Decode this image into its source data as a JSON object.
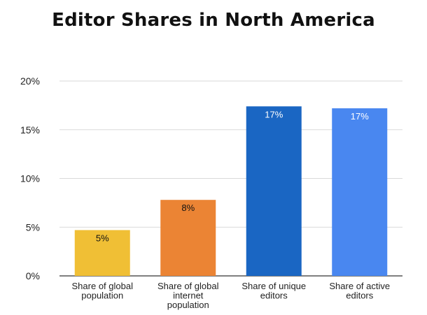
{
  "chart_data": {
    "type": "bar",
    "title": "Editor Shares in North America",
    "xlabel": "",
    "ylabel": "",
    "ylim": [
      0,
      20
    ],
    "yticks": [
      "0%",
      "5%",
      "10%",
      "15%",
      "20%"
    ],
    "ytick_values": [
      0,
      5,
      10,
      15,
      20
    ],
    "grid": true,
    "categories": [
      [
        "Share of global",
        "population"
      ],
      [
        "Share of global",
        "internet",
        "population"
      ],
      [
        "Share of unique",
        "editors"
      ],
      [
        "Share of active",
        "editors"
      ]
    ],
    "values": [
      4.7,
      7.8,
      17.4,
      17.2
    ],
    "data_labels": [
      "5%",
      "8%",
      "17%",
      "17%"
    ],
    "colors": [
      "#F0BF35",
      "#EB8434",
      "#1A66C3",
      "#4987F0"
    ],
    "label_colors": [
      "#111111",
      "#111111",
      "#ffffff",
      "#ffffff"
    ]
  }
}
